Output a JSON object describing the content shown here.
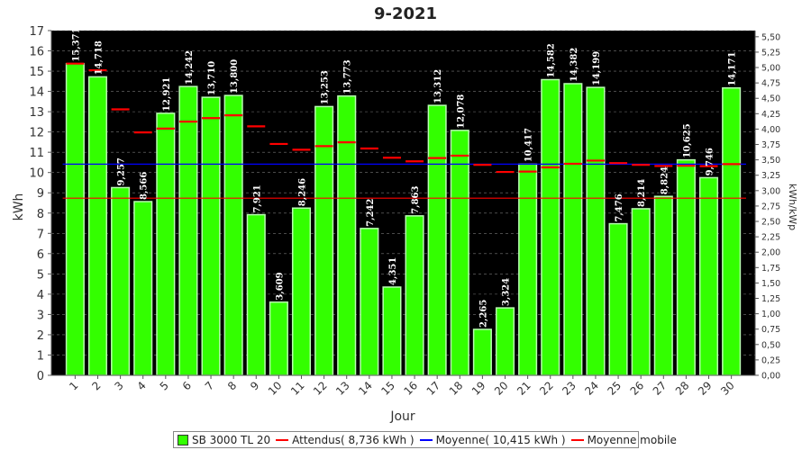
{
  "chart_data": {
    "type": "bar",
    "title": "9-2021",
    "xlabel": "Jour",
    "ylabel": "kWh",
    "y2label": "kWh/kWp",
    "ylim": [
      0,
      17
    ],
    "y2lim": [
      0,
      5.6
    ],
    "categories": [
      "1",
      "2",
      "3",
      "4",
      "5",
      "6",
      "7",
      "8",
      "9",
      "10",
      "11",
      "12",
      "13",
      "14",
      "15",
      "16",
      "17",
      "18",
      "19",
      "20",
      "21",
      "22",
      "23",
      "24",
      "25",
      "26",
      "27",
      "28",
      "29",
      "30"
    ],
    "data_labels": [
      "15,371",
      "14,718",
      "9,257",
      "8,566",
      "12,921",
      "14,242",
      "13,710",
      "13,800",
      "7,921",
      "3,609",
      "8,246",
      "13,253",
      "13,773",
      "7,242",
      "4,351",
      "7,863",
      "13,312",
      "12,078",
      "2,265",
      "3,324",
      "10,417",
      "14,582",
      "14,382",
      "14,199",
      "7,476",
      "8,214",
      "8,824",
      "10,625",
      "9,746",
      "14,171"
    ],
    "y_ticks": [
      "0",
      "1",
      "2",
      "3",
      "4",
      "5",
      "6",
      "7",
      "8",
      "9",
      "10",
      "11",
      "12",
      "13",
      "14",
      "15",
      "16",
      "17"
    ],
    "y2_ticks": [
      "0,00",
      "0,25",
      "0,50",
      "0,75",
      "1,00",
      "1,25",
      "1,50",
      "1,75",
      "2,00",
      "2,25",
      "2,50",
      "2,75",
      "3,00",
      "3,25",
      "3,50",
      "3,75",
      "4,00",
      "4,25",
      "4,50",
      "4,75",
      "5,00",
      "5,25",
      "5,50"
    ],
    "series": [
      {
        "name": "SB 3000 TL 20",
        "type": "bar",
        "color": "#33ff00",
        "values": [
          15.371,
          14.718,
          9.257,
          8.566,
          12.921,
          14.242,
          13.71,
          13.8,
          7.921,
          3.609,
          8.246,
          13.253,
          13.773,
          7.242,
          4.351,
          7.863,
          13.312,
          12.078,
          2.265,
          3.324,
          10.417,
          14.582,
          14.382,
          14.199,
          7.476,
          8.214,
          8.824,
          10.625,
          9.746,
          14.171
        ]
      },
      {
        "name": "Attendus( 8,736 kWh )",
        "type": "line",
        "color": "#ff0000",
        "value": 8.736
      },
      {
        "name": "Moyenne( 10,415 kWh )",
        "type": "line",
        "color": "#0000ff",
        "value": 10.415
      },
      {
        "name": "Moyenne mobile",
        "type": "marker",
        "color": "#ff0000",
        "values": [
          15.371,
          15.045,
          13.115,
          11.978,
          12.167,
          12.513,
          12.684,
          12.823,
          12.278,
          11.411,
          11.123,
          11.301,
          11.49,
          11.187,
          10.731,
          10.552,
          10.714,
          10.833,
          10.382,
          10.029,
          10.048,
          10.254,
          10.434,
          10.59,
          10.466,
          10.379,
          10.322,
          10.333,
          10.313,
          10.415
        ]
      }
    ],
    "grid": true,
    "legend_position": "bottom",
    "colors": {
      "plot_bg": "#000000",
      "grid": "#777777",
      "bar": "#33ff00",
      "bar_edge": "#b8ffb0"
    }
  }
}
